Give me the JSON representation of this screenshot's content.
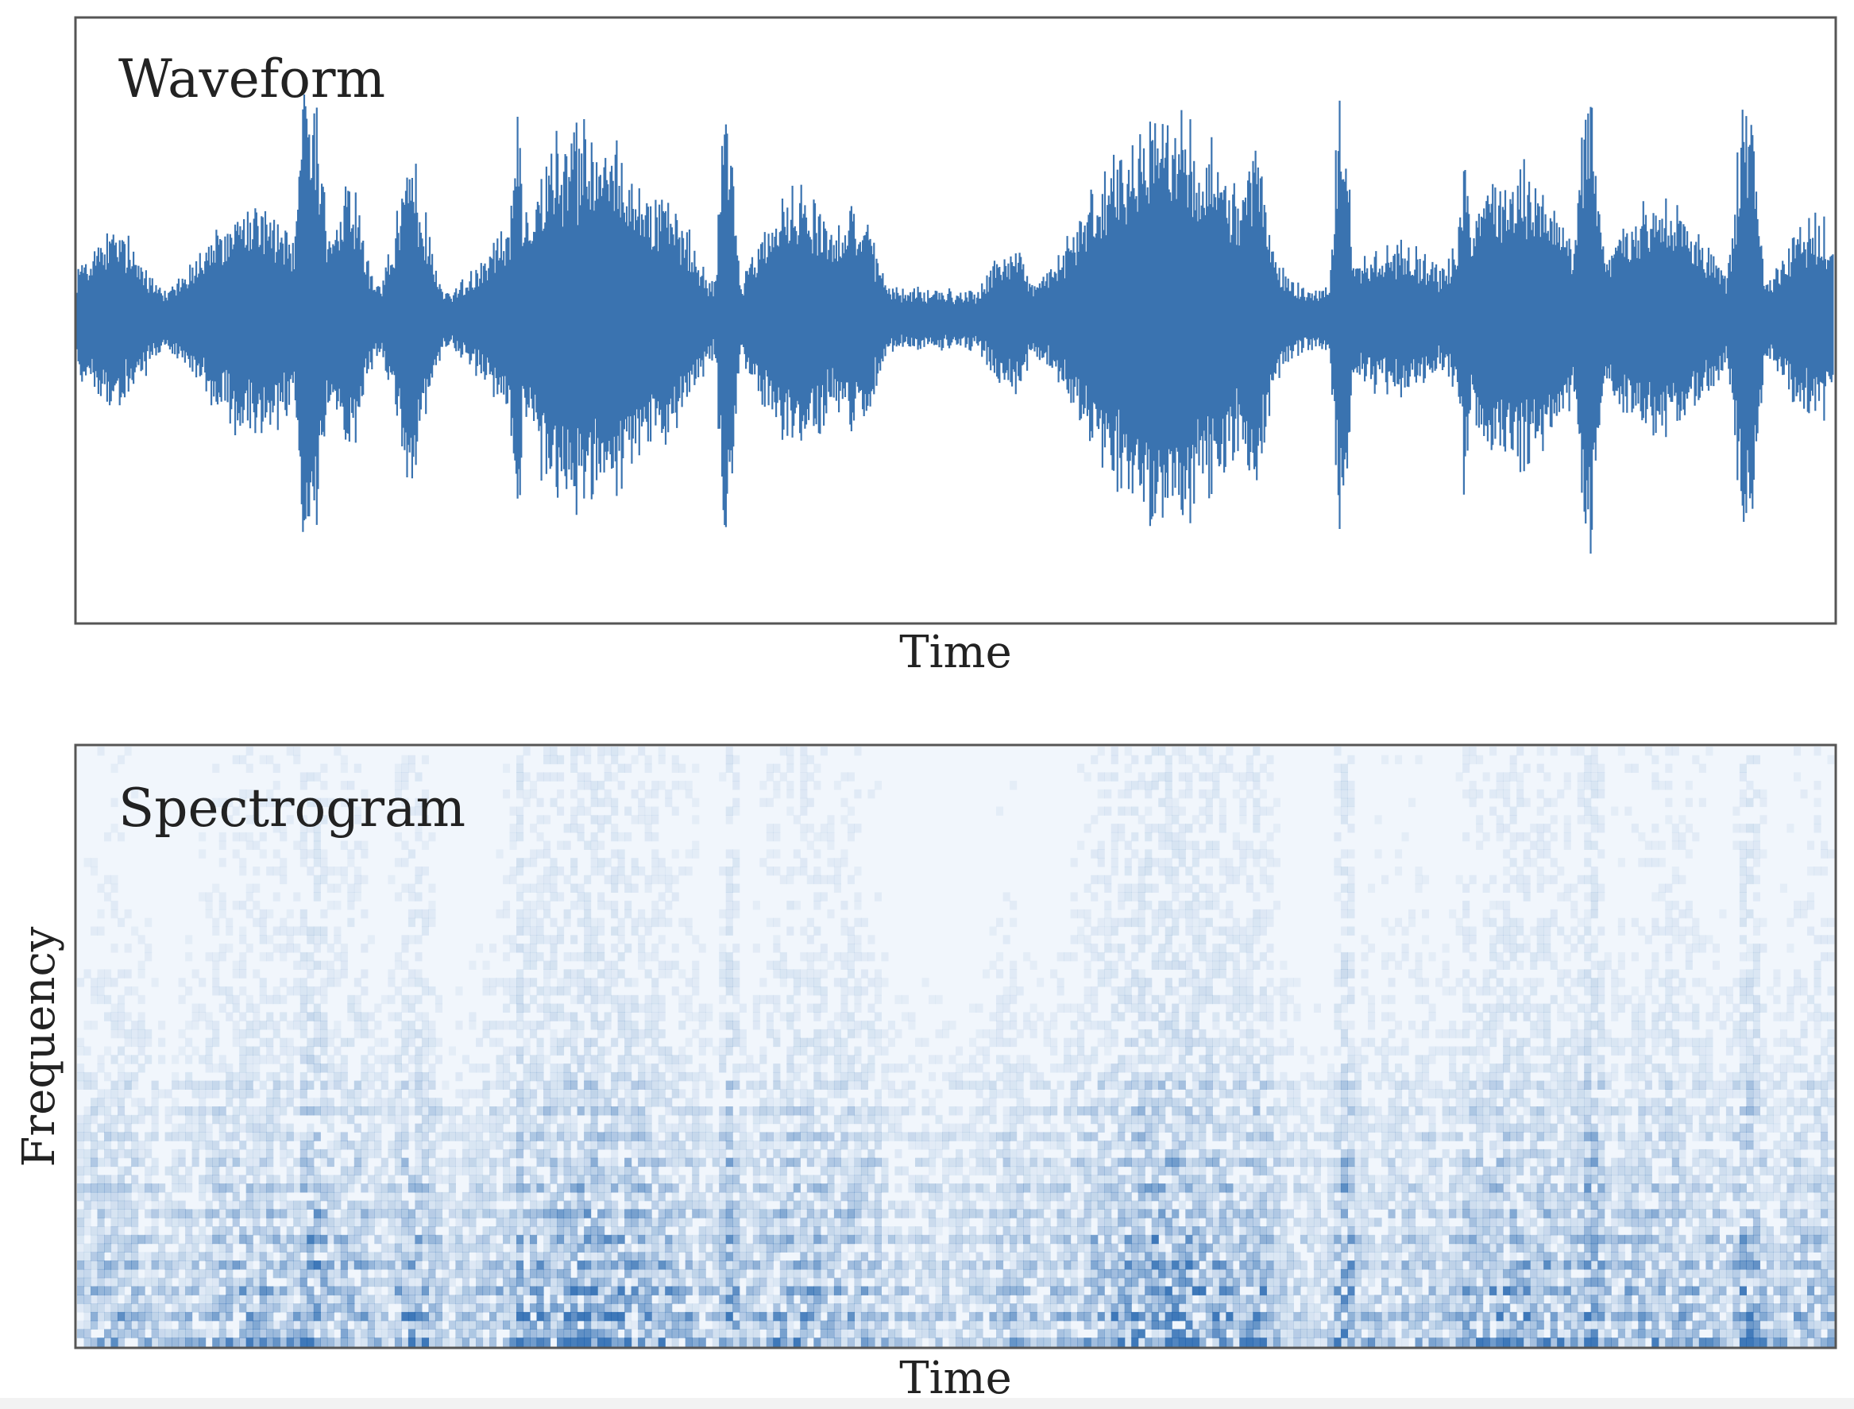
{
  "panels": [
    {
      "title": "Waveform",
      "xlabel": "Time"
    },
    {
      "title": "Spectrogram",
      "xlabel": "Time",
      "ylabel": "Frequency"
    }
  ]
}
